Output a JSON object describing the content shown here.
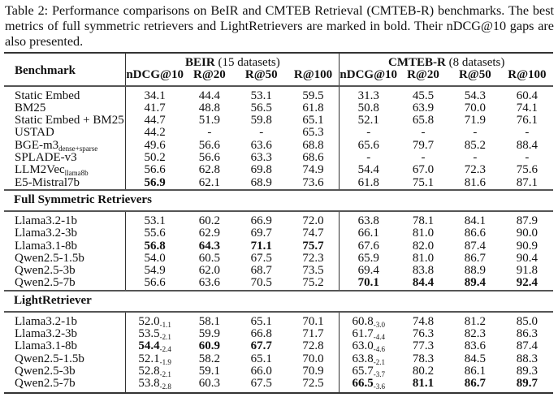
{
  "caption": "Table 2: Performance comparisons on BeIR and CMTEB Retrieval (CMTEB-R) benchmarks. The best metrics of full symmetric retrievers and LightRetrievers are marked in bold. Their nDCG@10 gaps are also presented.",
  "header": {
    "benchmark": "Benchmark",
    "groups": [
      {
        "name": "BEIR",
        "note": "(15 datasets)"
      },
      {
        "name": "CMTEB-R",
        "note": "(8 datasets)"
      }
    ],
    "metrics": [
      "nDCG@10",
      "R@20",
      "R@50",
      "R@100",
      "nDCG@10",
      "R@20",
      "R@50",
      "R@100"
    ]
  },
  "sections": [
    {
      "title": "",
      "rows": [
        {
          "label": "Static Embed",
          "cells": [
            {
              "v": "34.1"
            },
            {
              "v": "44.4"
            },
            {
              "v": "53.1"
            },
            {
              "v": "59.5"
            },
            {
              "v": "31.3"
            },
            {
              "v": "45.5"
            },
            {
              "v": "54.3"
            },
            {
              "v": "60.4"
            }
          ]
        },
        {
          "label": "BM25",
          "cells": [
            {
              "v": "41.7"
            },
            {
              "v": "48.8"
            },
            {
              "v": "56.5"
            },
            {
              "v": "61.8"
            },
            {
              "v": "50.8"
            },
            {
              "v": "63.9"
            },
            {
              "v": "70.0"
            },
            {
              "v": "74.1"
            }
          ]
        },
        {
          "label": "Static Embed + BM25",
          "cells": [
            {
              "v": "44.7"
            },
            {
              "v": "51.9"
            },
            {
              "v": "59.8"
            },
            {
              "v": "65.1"
            },
            {
              "v": "52.1"
            },
            {
              "v": "65.8"
            },
            {
              "v": "71.9"
            },
            {
              "v": "76.1"
            }
          ]
        },
        {
          "label": "USTAD",
          "cells": [
            {
              "v": "44.2"
            },
            {
              "v": "-"
            },
            {
              "v": "-"
            },
            {
              "v": "65.3"
            },
            {
              "v": "-"
            },
            {
              "v": "-"
            },
            {
              "v": "-"
            },
            {
              "v": "-"
            }
          ]
        },
        {
          "label": "BGE-m3",
          "label_sub": "dense+sparse",
          "cells": [
            {
              "v": "49.6"
            },
            {
              "v": "56.6"
            },
            {
              "v": "63.6"
            },
            {
              "v": "68.8"
            },
            {
              "v": "65.6"
            },
            {
              "v": "79.7"
            },
            {
              "v": "85.2"
            },
            {
              "v": "88.4"
            }
          ]
        },
        {
          "label": "SPLADE-v3",
          "cells": [
            {
              "v": "50.2"
            },
            {
              "v": "56.6"
            },
            {
              "v": "63.3"
            },
            {
              "v": "68.6"
            },
            {
              "v": "-"
            },
            {
              "v": "-"
            },
            {
              "v": "-"
            },
            {
              "v": "-"
            }
          ]
        },
        {
          "label": "LLM2Vec",
          "label_sub": "llama8b",
          "cells": [
            {
              "v": "56.6"
            },
            {
              "v": "62.8"
            },
            {
              "v": "69.8"
            },
            {
              "v": "74.9"
            },
            {
              "v": "54.4"
            },
            {
              "v": "67.0"
            },
            {
              "v": "72.3"
            },
            {
              "v": "75.6"
            }
          ]
        },
        {
          "label": "E5-Mistral7b",
          "cells": [
            {
              "v": "56.9",
              "bold": true
            },
            {
              "v": "62.1"
            },
            {
              "v": "68.9"
            },
            {
              "v": "73.6"
            },
            {
              "v": "61.8"
            },
            {
              "v": "75.1"
            },
            {
              "v": "81.6"
            },
            {
              "v": "87.1"
            }
          ]
        }
      ]
    },
    {
      "title": "Full Symmetric Retrievers",
      "rows": [
        {
          "label": "Llama3.2-1b",
          "cells": [
            {
              "v": "53.1"
            },
            {
              "v": "60.2"
            },
            {
              "v": "66.9"
            },
            {
              "v": "72.0"
            },
            {
              "v": "63.8"
            },
            {
              "v": "78.1"
            },
            {
              "v": "84.1"
            },
            {
              "v": "87.9"
            }
          ]
        },
        {
          "label": "Llama3.2-3b",
          "cells": [
            {
              "v": "55.6"
            },
            {
              "v": "62.9"
            },
            {
              "v": "69.7"
            },
            {
              "v": "74.7"
            },
            {
              "v": "66.1"
            },
            {
              "v": "81.0"
            },
            {
              "v": "86.6"
            },
            {
              "v": "90.0"
            }
          ]
        },
        {
          "label": "Llama3.1-8b",
          "cells": [
            {
              "v": "56.8",
              "bold": true
            },
            {
              "v": "64.3",
              "bold": true
            },
            {
              "v": "71.1",
              "bold": true
            },
            {
              "v": "75.7",
              "bold": true
            },
            {
              "v": "67.6"
            },
            {
              "v": "82.0"
            },
            {
              "v": "87.4"
            },
            {
              "v": "90.9"
            }
          ]
        },
        {
          "label": "Qwen2.5-1.5b",
          "cells": [
            {
              "v": "54.0"
            },
            {
              "v": "60.5"
            },
            {
              "v": "67.5"
            },
            {
              "v": "72.3"
            },
            {
              "v": "65.9"
            },
            {
              "v": "81.0"
            },
            {
              "v": "86.7"
            },
            {
              "v": "90.4"
            }
          ]
        },
        {
          "label": "Qwen2.5-3b",
          "cells": [
            {
              "v": "54.9"
            },
            {
              "v": "62.0"
            },
            {
              "v": "68.7"
            },
            {
              "v": "73.5"
            },
            {
              "v": "69.4"
            },
            {
              "v": "83.8"
            },
            {
              "v": "88.9"
            },
            {
              "v": "91.8"
            }
          ]
        },
        {
          "label": "Qwen2.5-7b",
          "cells": [
            {
              "v": "56.6"
            },
            {
              "v": "63.6"
            },
            {
              "v": "70.5"
            },
            {
              "v": "75.2"
            },
            {
              "v": "70.1",
              "bold": true
            },
            {
              "v": "84.4",
              "bold": true
            },
            {
              "v": "89.4",
              "bold": true
            },
            {
              "v": "92.4",
              "bold": true
            }
          ]
        }
      ]
    },
    {
      "title": "LightRetriever",
      "rows": [
        {
          "label": "Llama3.2-1b",
          "cells": [
            {
              "v": "52.0",
              "sub": "-1.1"
            },
            {
              "v": "58.1"
            },
            {
              "v": "65.1"
            },
            {
              "v": "70.1"
            },
            {
              "v": "60.8",
              "sub": "-3.0"
            },
            {
              "v": "74.8"
            },
            {
              "v": "81.2"
            },
            {
              "v": "85.0"
            }
          ]
        },
        {
          "label": "Llama3.2-3b",
          "cells": [
            {
              "v": "53.5",
              "sub": "-2.1"
            },
            {
              "v": "59.9"
            },
            {
              "v": "66.8"
            },
            {
              "v": "71.7"
            },
            {
              "v": "61.7",
              "sub": "-4.4"
            },
            {
              "v": "76.3"
            },
            {
              "v": "82.3"
            },
            {
              "v": "86.3"
            }
          ]
        },
        {
          "label": "Llama3.1-8b",
          "cells": [
            {
              "v": "54.4",
              "sub": "-2.4",
              "bold": true
            },
            {
              "v": "60.9",
              "bold": true
            },
            {
              "v": "67.7",
              "bold": true
            },
            {
              "v": "72.8"
            },
            {
              "v": "63.0",
              "sub": "-4.6"
            },
            {
              "v": "77.3"
            },
            {
              "v": "83.6"
            },
            {
              "v": "87.4"
            }
          ]
        },
        {
          "label": "Qwen2.5-1.5b",
          "cells": [
            {
              "v": "52.1",
              "sub": "-1.9"
            },
            {
              "v": "58.2"
            },
            {
              "v": "65.1"
            },
            {
              "v": "70.0"
            },
            {
              "v": "63.8",
              "sub": "-2.1"
            },
            {
              "v": "78.3"
            },
            {
              "v": "84.5"
            },
            {
              "v": "88.3"
            }
          ]
        },
        {
          "label": "Qwen2.5-3b",
          "cells": [
            {
              "v": "52.8",
              "sub": "-2.1"
            },
            {
              "v": "59.1"
            },
            {
              "v": "66.0"
            },
            {
              "v": "70.9"
            },
            {
              "v": "65.7",
              "sub": "-3.7"
            },
            {
              "v": "80.2"
            },
            {
              "v": "86.1"
            },
            {
              "v": "89.3"
            }
          ]
        },
        {
          "label": "Qwen2.5-7b",
          "cells": [
            {
              "v": "53.8",
              "sub": "-2.8"
            },
            {
              "v": "60.3"
            },
            {
              "v": "67.5"
            },
            {
              "v": "72.5"
            },
            {
              "v": "66.5",
              "sub": "-3.6",
              "bold": true
            },
            {
              "v": "81.1",
              "bold": true
            },
            {
              "v": "86.7",
              "bold": true
            },
            {
              "v": "89.7",
              "bold": true
            }
          ]
        }
      ]
    }
  ]
}
